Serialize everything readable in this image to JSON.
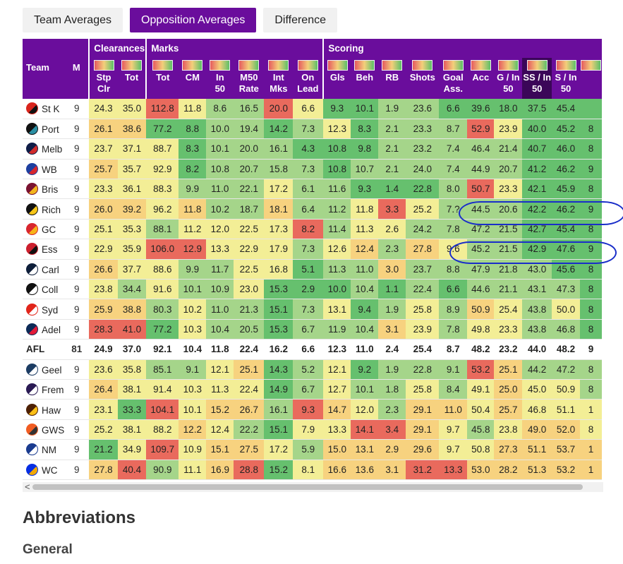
{
  "tabs": [
    "Team Averages",
    "Opposition Averages",
    "Difference"
  ],
  "active_tab": 1,
  "groups": [
    {
      "label": "",
      "span": 2
    },
    {
      "label": "Clearances",
      "span": 2
    },
    {
      "label": "Marks",
      "span": 6
    },
    {
      "label": "Scoring",
      "span": 10
    }
  ],
  "columns": [
    "Team",
    "M",
    "Stp Clr",
    "Tot",
    "Tot",
    "CM",
    "In 50",
    "M50 Rate",
    "Int Mks",
    "On Lead",
    "Gls",
    "Beh",
    "RB",
    "Shots",
    "Goal Ass.",
    "Acc",
    "G / In 50",
    "SS / In 50",
    "S / In 50",
    ""
  ],
  "selected_column": 17,
  "rows": [
    {
      "team": "St K",
      "logo": [
        "#d9241c",
        "#111111"
      ],
      "m": "9",
      "v": [
        "24.3",
        "35.0",
        "112.8",
        "11.8",
        "8.6",
        "16.5",
        "20.0",
        "6.6",
        "9.3",
        "10.1",
        "1.9",
        "23.6",
        "6.6",
        "39.6",
        "18.0",
        "37.5",
        "45.4",
        ""
      ]
    },
    {
      "team": "Port",
      "logo": [
        "#111111",
        "#2a8fa3"
      ],
      "m": "9",
      "v": [
        "26.1",
        "38.6",
        "77.2",
        "8.8",
        "10.0",
        "19.4",
        "14.2",
        "7.3",
        "12.3",
        "8.3",
        "2.1",
        "23.3",
        "8.7",
        "52.9",
        "23.9",
        "40.0",
        "45.2",
        "8"
      ]
    },
    {
      "team": "Melb",
      "logo": [
        "#0f1c47",
        "#d12b2b"
      ],
      "m": "9",
      "v": [
        "23.7",
        "37.1",
        "88.7",
        "8.3",
        "10.1",
        "20.0",
        "16.1",
        "4.3",
        "10.8",
        "9.8",
        "2.1",
        "23.2",
        "7.4",
        "46.4",
        "21.4",
        "40.7",
        "46.0",
        "8"
      ]
    },
    {
      "team": "WB",
      "logo": [
        "#1e3fa0",
        "#d6262e"
      ],
      "m": "9",
      "v": [
        "25.7",
        "35.7",
        "92.9",
        "8.2",
        "10.8",
        "20.7",
        "15.8",
        "7.3",
        "10.8",
        "10.7",
        "2.1",
        "24.0",
        "7.4",
        "44.9",
        "20.7",
        "41.2",
        "46.2",
        "9"
      ]
    },
    {
      "team": "Bris",
      "logo": [
        "#7a1230",
        "#f2b51c"
      ],
      "m": "9",
      "v": [
        "23.3",
        "36.1",
        "88.3",
        "9.9",
        "11.0",
        "22.1",
        "17.2",
        "6.1",
        "11.6",
        "9.3",
        "1.4",
        "22.8",
        "8.0",
        "50.7",
        "23.3",
        "42.1",
        "45.9",
        "8"
      ]
    },
    {
      "team": "Rich",
      "logo": [
        "#111111",
        "#f5c518"
      ],
      "m": "9",
      "v": [
        "26.0",
        "39.2",
        "96.2",
        "11.8",
        "10.2",
        "18.7",
        "18.1",
        "6.4",
        "11.2",
        "11.8",
        "3.3",
        "25.2",
        "7.?",
        "44.5",
        "20.6",
        "42.2",
        "46.2",
        "9"
      ]
    },
    {
      "team": "GC",
      "logo": [
        "#d8262e",
        "#f7b318"
      ],
      "m": "9",
      "v": [
        "25.1",
        "35.3",
        "88.1",
        "11.2",
        "12.0",
        "22.5",
        "17.3",
        "8.2",
        "11.4",
        "11.3",
        "2.6",
        "24.2",
        "7.8",
        "47.2",
        "21.5",
        "42.7",
        "45.4",
        "8"
      ]
    },
    {
      "team": "Ess",
      "logo": [
        "#cc1f2d",
        "#111111"
      ],
      "m": "9",
      "v": [
        "22.9",
        "35.9",
        "106.0",
        "12.9",
        "13.3",
        "22.9",
        "17.9",
        "7.3",
        "12.6",
        "12.4",
        "2.3",
        "27.8",
        "9.6",
        "45.2",
        "21.5",
        "42.9",
        "47.6",
        "9"
      ]
    },
    {
      "team": "Carl",
      "logo": [
        "#0e1e3a",
        "#ffffff"
      ],
      "m": "9",
      "v": [
        "26.6",
        "37.7",
        "88.6",
        "9.9",
        "11.7",
        "22.5",
        "16.8",
        "5.1",
        "11.3",
        "11.0",
        "3.0",
        "23.7",
        "8.8",
        "47.9",
        "21.8",
        "43.0",
        "45.6",
        "8"
      ]
    },
    {
      "team": "Coll",
      "logo": [
        "#111111",
        "#ffffff"
      ],
      "m": "9",
      "v": [
        "23.8",
        "34.4",
        "91.6",
        "10.1",
        "10.9",
        "23.0",
        "15.3",
        "2.9",
        "10.0",
        "10.4",
        "1.1",
        "22.4",
        "6.6",
        "44.6",
        "21.1",
        "43.1",
        "47.3",
        "8"
      ]
    },
    {
      "team": "Syd",
      "logo": [
        "#e1251b",
        "#ffffff"
      ],
      "m": "9",
      "v": [
        "25.9",
        "38.8",
        "80.3",
        "10.2",
        "11.0",
        "21.3",
        "15.1",
        "7.3",
        "13.1",
        "9.4",
        "1.9",
        "25.8",
        "8.9",
        "50.9",
        "25.4",
        "43.8",
        "50.0",
        "8"
      ]
    },
    {
      "team": "Adel",
      "logo": [
        "#0d2a57",
        "#e21937"
      ],
      "m": "9",
      "v": [
        "28.3",
        "41.0",
        "77.2",
        "10.3",
        "10.4",
        "20.5",
        "15.3",
        "6.7",
        "11.9",
        "10.4",
        "3.1",
        "23.9",
        "7.8",
        "49.8",
        "23.3",
        "43.8",
        "46.8",
        "8"
      ]
    },
    {
      "team": "AFL",
      "afl": true,
      "m": "81",
      "v": [
        "24.9",
        "37.0",
        "92.1",
        "10.4",
        "11.8",
        "22.4",
        "16.2",
        "6.6",
        "12.3",
        "11.0",
        "2.4",
        "25.4",
        "8.7",
        "48.2",
        "23.2",
        "44.0",
        "48.2",
        "9"
      ]
    },
    {
      "team": "Geel",
      "logo": [
        "#1c3c63",
        "#ffffff"
      ],
      "m": "9",
      "v": [
        "23.6",
        "35.8",
        "85.1",
        "9.1",
        "12.1",
        "25.1",
        "14.3",
        "5.2",
        "12.1",
        "9.2",
        "1.9",
        "22.8",
        "9.1",
        "53.2",
        "25.1",
        "44.2",
        "47.2",
        "8"
      ]
    },
    {
      "team": "Frem",
      "logo": [
        "#2a1a54",
        "#ffffff"
      ],
      "m": "9",
      "v": [
        "26.4",
        "38.1",
        "91.4",
        "10.3",
        "11.3",
        "22.4",
        "14.9",
        "6.7",
        "12.7",
        "10.1",
        "1.8",
        "25.8",
        "8.4",
        "49.1",
        "25.0",
        "45.0",
        "50.9",
        "8"
      ]
    },
    {
      "team": "Haw",
      "logo": [
        "#4d2004",
        "#fbbf15"
      ],
      "m": "9",
      "v": [
        "23.1",
        "33.3",
        "104.1",
        "10.1",
        "15.2",
        "26.7",
        "16.1",
        "9.3",
        "14.7",
        "12.0",
        "2.3",
        "29.1",
        "11.0",
        "50.4",
        "25.7",
        "46.8",
        "51.1",
        "1"
      ]
    },
    {
      "team": "GWS",
      "logo": [
        "#f15c22",
        "#333333"
      ],
      "m": "9",
      "v": [
        "25.2",
        "38.1",
        "88.2",
        "12.2",
        "12.4",
        "22.2",
        "15.1",
        "7.9",
        "13.3",
        "14.1",
        "3.4",
        "29.1",
        "9.7",
        "45.8",
        "23.8",
        "49.0",
        "52.0",
        "8"
      ]
    },
    {
      "team": "NM",
      "logo": [
        "#1a3b8f",
        "#ffffff"
      ],
      "m": "9",
      "v": [
        "21.2",
        "34.9",
        "109.7",
        "10.9",
        "15.1",
        "27.5",
        "17.2",
        "5.9",
        "15.0",
        "13.1",
        "2.9",
        "29.6",
        "9.7",
        "50.8",
        "27.3",
        "51.1",
        "53.7",
        "1"
      ]
    },
    {
      "team": "WC",
      "logo": [
        "#062ee2",
        "#f2a900"
      ],
      "m": "9",
      "v": [
        "27.8",
        "40.4",
        "90.9",
        "11.1",
        "16.9",
        "28.8",
        "15.2",
        "8.1",
        "16.6",
        "13.6",
        "3.1",
        "31.2",
        "13.3",
        "53.0",
        "28.2",
        "51.3",
        "53.2",
        "1"
      ]
    }
  ],
  "colors": [
    "#e96a5d",
    "#f7d27f",
    "#f3ee96",
    "#a5d58a",
    "#66c06e"
  ],
  "cell_colors": [
    [
      2,
      2,
      0,
      2,
      3,
      3,
      0,
      2,
      4,
      4,
      3,
      3,
      4,
      4,
      4,
      4,
      4,
      4
    ],
    [
      1,
      1,
      4,
      4,
      3,
      3,
      4,
      3,
      2,
      4,
      3,
      3,
      3,
      0,
      2,
      4,
      4,
      4
    ],
    [
      2,
      2,
      2,
      4,
      3,
      3,
      3,
      4,
      4,
      4,
      3,
      3,
      3,
      3,
      3,
      4,
      4,
      4
    ],
    [
      1,
      2,
      2,
      4,
      3,
      3,
      3,
      3,
      4,
      3,
      3,
      3,
      3,
      3,
      3,
      4,
      4,
      4
    ],
    [
      2,
      2,
      2,
      3,
      3,
      3,
      2,
      3,
      3,
      4,
      4,
      4,
      3,
      0,
      2,
      4,
      4,
      4
    ],
    [
      1,
      1,
      2,
      1,
      3,
      3,
      1,
      3,
      3,
      2,
      0,
      2,
      3,
      3,
      3,
      4,
      4,
      4
    ],
    [
      2,
      2,
      3,
      2,
      2,
      2,
      2,
      0,
      3,
      2,
      2,
      3,
      3,
      3,
      3,
      4,
      4,
      4
    ],
    [
      2,
      2,
      0,
      0,
      2,
      2,
      2,
      3,
      2,
      1,
      3,
      1,
      2,
      3,
      3,
      4,
      4,
      4
    ],
    [
      1,
      2,
      2,
      3,
      3,
      2,
      2,
      4,
      3,
      3,
      1,
      3,
      3,
      3,
      3,
      3,
      4,
      4
    ],
    [
      2,
      3,
      2,
      3,
      3,
      2,
      4,
      4,
      4,
      3,
      4,
      3,
      4,
      3,
      3,
      3,
      3,
      4
    ],
    [
      1,
      1,
      3,
      2,
      3,
      3,
      4,
      3,
      2,
      4,
      3,
      2,
      3,
      1,
      2,
      3,
      2,
      4
    ],
    [
      0,
      0,
      4,
      2,
      3,
      3,
      4,
      3,
      3,
      3,
      1,
      2,
      3,
      2,
      2,
      3,
      3,
      4
    ],
    [
      5,
      5,
      5,
      5,
      5,
      5,
      5,
      5,
      5,
      5,
      5,
      5,
      5,
      5,
      5,
      5,
      5,
      5
    ],
    [
      2,
      2,
      3,
      3,
      2,
      1,
      4,
      3,
      2,
      4,
      3,
      3,
      3,
      0,
      1,
      3,
      3,
      3
    ],
    [
      1,
      2,
      2,
      2,
      2,
      2,
      4,
      3,
      2,
      3,
      3,
      2,
      3,
      2,
      1,
      2,
      2,
      3
    ],
    [
      2,
      4,
      0,
      2,
      1,
      1,
      3,
      0,
      1,
      2,
      3,
      1,
      1,
      2,
      1,
      2,
      2,
      2
    ],
    [
      2,
      2,
      2,
      1,
      2,
      3,
      4,
      2,
      2,
      0,
      0,
      1,
      2,
      3,
      2,
      1,
      1,
      2
    ],
    [
      4,
      2,
      0,
      2,
      1,
      1,
      2,
      3,
      1,
      1,
      1,
      1,
      2,
      2,
      1,
      1,
      1,
      1
    ],
    [
      1,
      0,
      3,
      2,
      1,
      0,
      4,
      2,
      1,
      1,
      1,
      0,
      0,
      1,
      1,
      1,
      1,
      1
    ]
  ],
  "scroll_arrow": "<",
  "headings": {
    "abbreviations": "Abbreviations",
    "general": "General"
  }
}
